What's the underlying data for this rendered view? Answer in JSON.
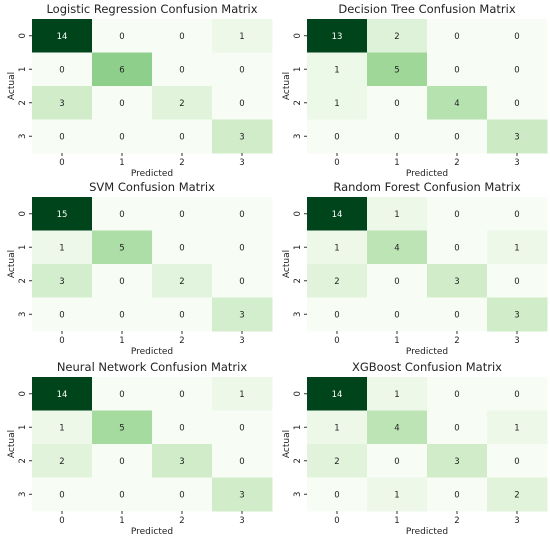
{
  "chart_data": [
    {
      "type": "heatmap",
      "title": "Logistic Regression Confusion Matrix",
      "xlabel": "Predicted",
      "ylabel": "Actual",
      "x_ticks": [
        "0",
        "1",
        "2",
        "3"
      ],
      "y_ticks": [
        "0",
        "1",
        "2",
        "3"
      ],
      "values": [
        [
          14,
          0,
          0,
          1
        ],
        [
          0,
          6,
          0,
          0
        ],
        [
          3,
          0,
          2,
          0
        ],
        [
          0,
          0,
          0,
          3
        ]
      ]
    },
    {
      "type": "heatmap",
      "title": "Decision Tree Confusion Matrix",
      "xlabel": "Predicted",
      "ylabel": "Actual",
      "x_ticks": [
        "0",
        "1",
        "2",
        "3"
      ],
      "y_ticks": [
        "0",
        "1",
        "2",
        "3"
      ],
      "values": [
        [
          13,
          2,
          0,
          0
        ],
        [
          1,
          5,
          0,
          0
        ],
        [
          1,
          0,
          4,
          0
        ],
        [
          0,
          0,
          0,
          3
        ]
      ]
    },
    {
      "type": "heatmap",
      "title": "SVM Confusion Matrix",
      "xlabel": "Predicted",
      "ylabel": "Actual",
      "x_ticks": [
        "0",
        "1",
        "2",
        "3"
      ],
      "y_ticks": [
        "0",
        "1",
        "2",
        "3"
      ],
      "values": [
        [
          15,
          0,
          0,
          0
        ],
        [
          1,
          5,
          0,
          0
        ],
        [
          3,
          0,
          2,
          0
        ],
        [
          0,
          0,
          0,
          3
        ]
      ]
    },
    {
      "type": "heatmap",
      "title": "Random Forest Confusion Matrix",
      "xlabel": "Predicted",
      "ylabel": "Actual",
      "x_ticks": [
        "0",
        "1",
        "2",
        "3"
      ],
      "y_ticks": [
        "0",
        "1",
        "2",
        "3"
      ],
      "values": [
        [
          14,
          1,
          0,
          0
        ],
        [
          1,
          4,
          0,
          1
        ],
        [
          2,
          0,
          3,
          0
        ],
        [
          0,
          0,
          0,
          3
        ]
      ]
    },
    {
      "type": "heatmap",
      "title": "Neural Network Confusion Matrix",
      "xlabel": "Predicted",
      "ylabel": "Actual",
      "x_ticks": [
        "0",
        "1",
        "2",
        "3"
      ],
      "y_ticks": [
        "0",
        "1",
        "2",
        "3"
      ],
      "values": [
        [
          14,
          0,
          0,
          1
        ],
        [
          1,
          5,
          0,
          0
        ],
        [
          2,
          0,
          3,
          0
        ],
        [
          0,
          0,
          0,
          3
        ]
      ]
    },
    {
      "type": "heatmap",
      "title": "XGBoost Confusion Matrix",
      "xlabel": "Predicted",
      "ylabel": "Actual",
      "x_ticks": [
        "0",
        "1",
        "2",
        "3"
      ],
      "y_ticks": [
        "0",
        "1",
        "2",
        "3"
      ],
      "values": [
        [
          14,
          1,
          0,
          0
        ],
        [
          1,
          4,
          0,
          1
        ],
        [
          2,
          0,
          3,
          0
        ],
        [
          0,
          1,
          0,
          2
        ]
      ]
    }
  ],
  "colormap": "Greens",
  "colors": {
    "min": "#f7fcf5",
    "max": "#00441b",
    "text_dark": "#222222",
    "text_light": "#ffffff"
  }
}
